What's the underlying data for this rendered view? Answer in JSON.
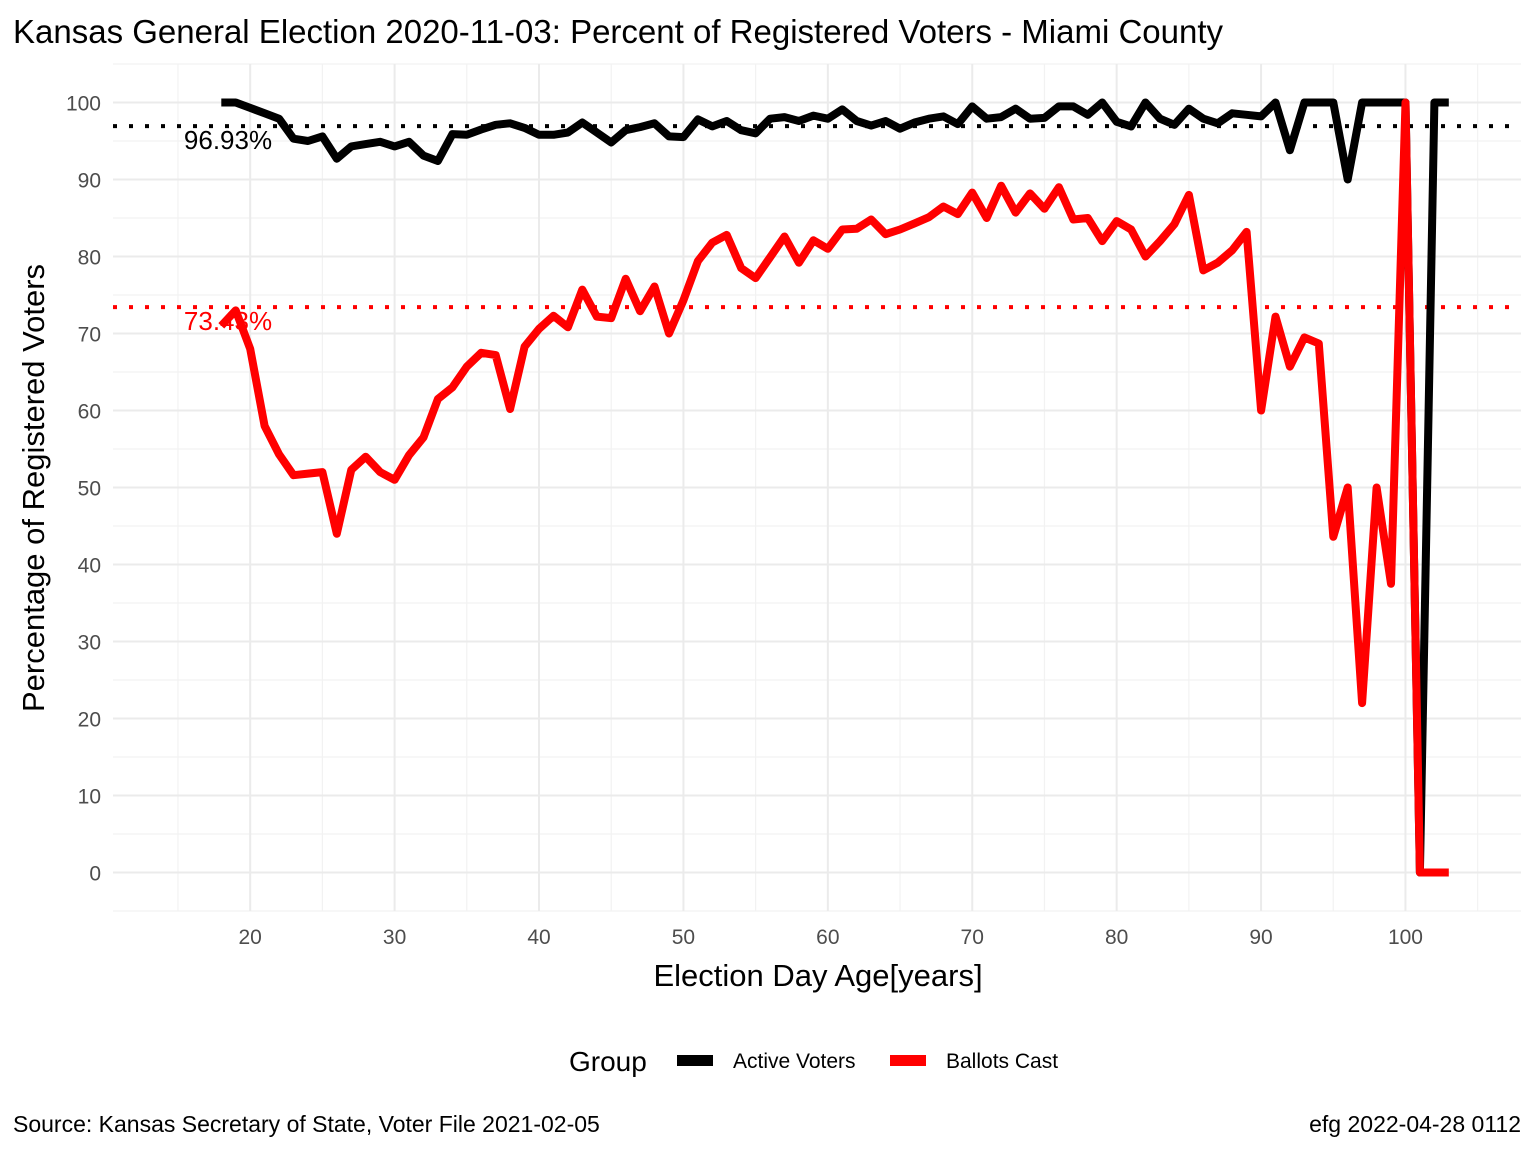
{
  "title": "Kansas General Election 2020-11-03:  Percent of Registered Voters - Miami County",
  "caption_left": "Source:  Kansas Secretary of State, Voter File  2021-02-05",
  "caption_right": "efg 2022-04-28 0112",
  "legend": {
    "title": "Group",
    "items": [
      {
        "label": "Active Voters",
        "color": "#000000"
      },
      {
        "label": "Ballots Cast",
        "color": "#ff0000"
      }
    ]
  },
  "chart_data": {
    "type": "line",
    "xlabel": "Election Day Age[years]",
    "ylabel": "Percentage of Registered Voters",
    "xlim": [
      10.5,
      108
    ],
    "ylim": [
      -5,
      105
    ],
    "x_ticks": [
      20,
      30,
      40,
      50,
      60,
      70,
      80,
      90,
      100
    ],
    "y_ticks": [
      0,
      10,
      20,
      30,
      40,
      50,
      60,
      70,
      80,
      90,
      100
    ],
    "grid": true,
    "legend_position": "bottom",
    "reference_lines": [
      {
        "label": "96.93%",
        "value": 96.93,
        "color": "#000000",
        "style": "dotted"
      },
      {
        "label": "73.43%",
        "value": 73.43,
        "color": "#ff0000",
        "style": "dotted"
      }
    ],
    "series": [
      {
        "name": "Active Voters",
        "color": "#000000",
        "x": [
          18,
          19,
          20,
          21,
          22,
          23,
          24,
          25,
          26,
          27,
          28,
          29,
          30,
          31,
          32,
          33,
          34,
          35,
          36,
          37,
          38,
          39,
          40,
          41,
          42,
          43,
          44,
          45,
          46,
          47,
          48,
          49,
          50,
          51,
          52,
          53,
          54,
          55,
          56,
          57,
          58,
          59,
          60,
          61,
          62,
          63,
          64,
          65,
          66,
          67,
          68,
          69,
          70,
          71,
          72,
          73,
          74,
          75,
          76,
          77,
          78,
          79,
          80,
          81,
          82,
          83,
          84,
          85,
          86,
          87,
          88,
          89,
          90,
          91,
          92,
          93,
          94,
          95,
          96,
          97,
          98,
          99,
          100,
          101,
          102,
          103
        ],
        "values": [
          100,
          100,
          99.3,
          98.6,
          97.9,
          95.3,
          95,
          95.6,
          92.7,
          94.3,
          94.6,
          94.9,
          94.3,
          94.9,
          93.1,
          92.4,
          95.9,
          95.8,
          96.5,
          97.1,
          97.3,
          96.7,
          95.8,
          95.8,
          96.1,
          97.4,
          96.1,
          94.8,
          96.4,
          96.8,
          97.3,
          95.6,
          95.5,
          97.8,
          96.9,
          97.6,
          96.4,
          96.0,
          97.9,
          98.1,
          97.6,
          98.3,
          97.9,
          99.1,
          97.6,
          97.0,
          97.6,
          96.6,
          97.4,
          97.9,
          98.2,
          97.2,
          99.5,
          97.9,
          98.1,
          99.2,
          97.9,
          98.0,
          99.5,
          99.5,
          98.4,
          100,
          97.5,
          96.9,
          100,
          97.9,
          97.1,
          99.2,
          97.9,
          97.3,
          98.6,
          98.4,
          98.2,
          100,
          93.8,
          100,
          100,
          100,
          90,
          100,
          100,
          100,
          100,
          0,
          100,
          100
        ]
      },
      {
        "name": "Ballots Cast",
        "color": "#ff0000",
        "x": [
          18,
          19,
          20,
          21,
          22,
          23,
          24,
          25,
          26,
          27,
          28,
          29,
          30,
          31,
          32,
          33,
          34,
          35,
          36,
          37,
          38,
          39,
          40,
          41,
          42,
          43,
          44,
          45,
          46,
          47,
          48,
          49,
          50,
          51,
          52,
          53,
          54,
          55,
          56,
          57,
          58,
          59,
          60,
          61,
          62,
          63,
          64,
          65,
          66,
          67,
          68,
          69,
          70,
          71,
          72,
          73,
          74,
          75,
          76,
          77,
          78,
          79,
          80,
          81,
          82,
          83,
          84,
          85,
          86,
          87,
          88,
          89,
          90,
          91,
          92,
          93,
          94,
          95,
          96,
          97,
          98,
          99,
          100,
          101,
          102,
          103
        ],
        "values": [
          71,
          73,
          68,
          58,
          54.3,
          51.6,
          51.8,
          52,
          44,
          52.3,
          54,
          52,
          51,
          54.2,
          56.5,
          61.5,
          63,
          65.7,
          67.5,
          67.2,
          60.2,
          68.3,
          70.6,
          72.3,
          70.8,
          75.7,
          72.2,
          72,
          77.1,
          72.9,
          76.1,
          70,
          74.3,
          79.4,
          81.8,
          82.8,
          78.5,
          77.2,
          79.9,
          82.6,
          79.2,
          82.1,
          81,
          83.5,
          83.6,
          84.8,
          82.9,
          83.5,
          84.3,
          85.1,
          86.5,
          85.5,
          88.3,
          85,
          89.2,
          85.7,
          88.2,
          86.2,
          89,
          84.8,
          85,
          82,
          84.6,
          83.5,
          80,
          82,
          84.2,
          88,
          78.2,
          79.2,
          80.8,
          83.2,
          60,
          72.2,
          65.7,
          69.5,
          68.7,
          43.6,
          50,
          22,
          50,
          37.5,
          100,
          0,
          0,
          0
        ]
      }
    ]
  }
}
